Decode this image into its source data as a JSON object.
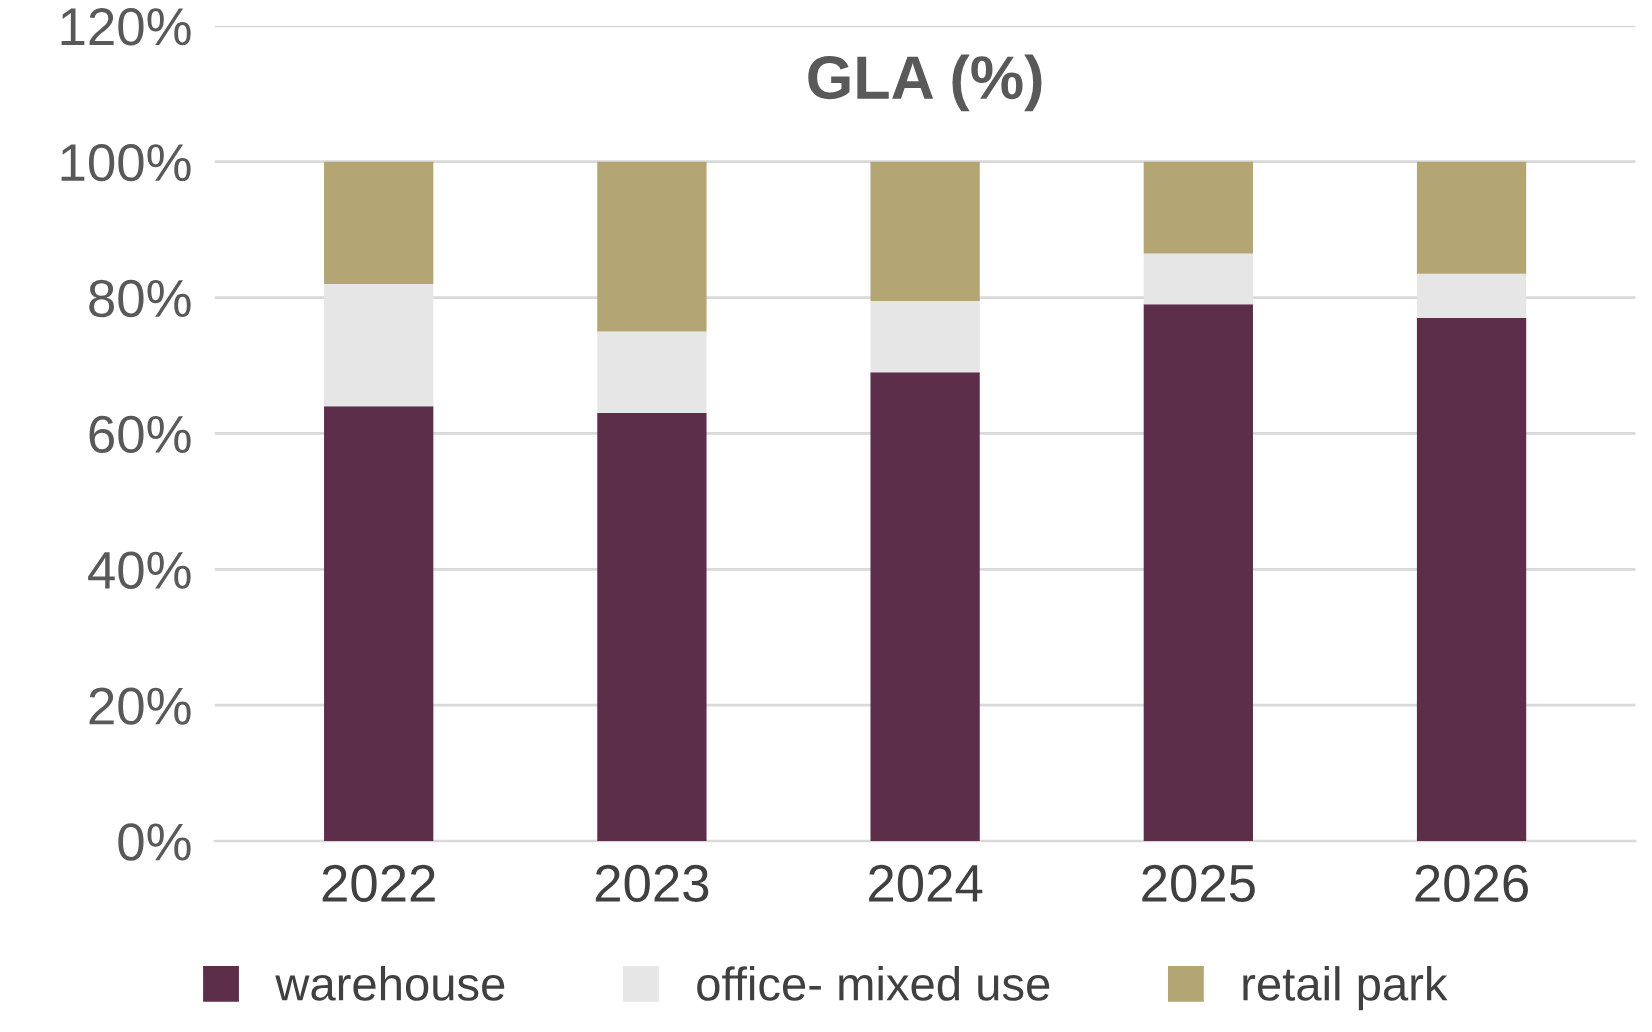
{
  "chart_data": {
    "type": "bar",
    "title": "GLA (%)",
    "stacked": true,
    "categories": [
      "2022",
      "2023",
      "2024",
      "2025",
      "2026"
    ],
    "series": [
      {
        "name": "warehouse",
        "color": "#5c2e4a",
        "values": [
          64,
          63,
          69,
          79,
          77
        ]
      },
      {
        "name": "office- mixed use",
        "color": "#e6e6e6",
        "values": [
          18,
          12,
          10.5,
          7.5,
          6.5
        ]
      },
      {
        "name": "retail park",
        "color": "#b3a574",
        "values": [
          18,
          25,
          20.5,
          13.5,
          16.5
        ]
      }
    ],
    "ylim": [
      0,
      120
    ],
    "yticks": [
      {
        "value": 0,
        "label": "0%"
      },
      {
        "value": 20,
        "label": "20%"
      },
      {
        "value": 40,
        "label": "40%"
      },
      {
        "value": 60,
        "label": "60%"
      },
      {
        "value": 80,
        "label": "80%"
      },
      {
        "value": 100,
        "label": "100%"
      },
      {
        "value": 120,
        "label": "120%"
      }
    ],
    "grid": "y",
    "legend": "bottom"
  }
}
